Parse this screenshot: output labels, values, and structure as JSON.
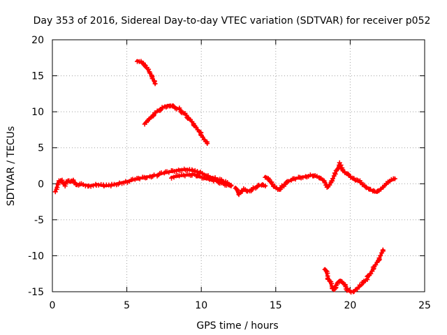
{
  "chart_data": {
    "type": "scatter",
    "title": "Day 353 of 2016, Sidereal Day-to-day VTEC variation (SDTVAR) for receiver p052",
    "xlabel": "GPS time / hours",
    "ylabel": "SDTVAR / TECUs",
    "xlim": [
      0,
      25
    ],
    "ylim": [
      -15,
      20
    ],
    "xticks": [
      0,
      5,
      10,
      15,
      20,
      25
    ],
    "yticks": [
      -15,
      -10,
      -5,
      0,
      5,
      10,
      15,
      20
    ],
    "grid": true,
    "marker": "plus",
    "color": "#ff0000",
    "series": [
      {
        "name": "track-1",
        "points": [
          [
            0.2,
            -1.0
          ],
          [
            0.3,
            -0.5
          ],
          [
            0.4,
            0.3
          ],
          [
            0.6,
            0.5
          ],
          [
            0.8,
            -0.2
          ],
          [
            1.0,
            0.4
          ],
          [
            1.2,
            0.2
          ],
          [
            1.4,
            0.5
          ],
          [
            1.6,
            0.0
          ],
          [
            1.8,
            -0.2
          ],
          [
            2.0,
            -0.1
          ],
          [
            2.5,
            -0.3
          ],
          [
            3.0,
            -0.1
          ],
          [
            3.5,
            -0.3
          ],
          [
            4.0,
            -0.2
          ],
          [
            4.5,
            0.1
          ],
          [
            5.0,
            0.3
          ],
          [
            5.5,
            0.6
          ],
          [
            6.0,
            0.8
          ],
          [
            6.5,
            1.0
          ],
          [
            7.0,
            1.2
          ],
          [
            7.5,
            1.5
          ],
          [
            8.0,
            1.7
          ],
          [
            8.5,
            1.9
          ],
          [
            9.0,
            2.0
          ],
          [
            9.5,
            1.8
          ],
          [
            10.0,
            1.5
          ],
          [
            10.5,
            1.0
          ],
          [
            11.0,
            0.7
          ],
          [
            11.5,
            0.3
          ],
          [
            12.0,
            -0.2
          ]
        ]
      },
      {
        "name": "track-2",
        "points": [
          [
            8.0,
            0.9
          ],
          [
            8.5,
            1.1
          ],
          [
            9.0,
            1.2
          ],
          [
            9.5,
            1.3
          ],
          [
            10.0,
            0.9
          ],
          [
            10.5,
            0.6
          ],
          [
            11.0,
            0.4
          ],
          [
            11.5,
            0.0
          ],
          [
            12.0,
            -0.3
          ]
        ]
      },
      {
        "name": "track-3",
        "points": [
          [
            12.3,
            -0.5
          ],
          [
            12.5,
            -1.5
          ],
          [
            12.8,
            -0.8
          ],
          [
            13.2,
            -1.0
          ],
          [
            13.6,
            -0.5
          ],
          [
            14.0,
            -0.2
          ],
          [
            14.3,
            -0.3
          ]
        ]
      },
      {
        "name": "track-4",
        "points": [
          [
            14.3,
            1.0
          ],
          [
            14.6,
            0.3
          ],
          [
            14.9,
            -0.5
          ],
          [
            15.2,
            -0.8
          ],
          [
            15.5,
            -0.2
          ],
          [
            16.0,
            0.5
          ],
          [
            16.5,
            0.8
          ],
          [
            17.0,
            1.0
          ],
          [
            17.5,
            1.2
          ],
          [
            18.0,
            0.8
          ],
          [
            18.3,
            0.3
          ],
          [
            18.5,
            -0.5
          ],
          [
            18.8,
            0.5
          ],
          [
            19.0,
            1.5
          ],
          [
            19.3,
            2.8
          ],
          [
            19.5,
            1.8
          ],
          [
            20.0,
            1.0
          ],
          [
            20.3,
            0.5
          ],
          [
            20.6,
            0.3
          ],
          [
            20.9,
            -0.2
          ],
          [
            21.2,
            -0.6
          ],
          [
            21.5,
            -1.0
          ],
          [
            21.8,
            -1.2
          ],
          [
            22.2,
            -0.5
          ],
          [
            22.6,
            0.3
          ],
          [
            23.0,
            0.7
          ]
        ]
      },
      {
        "name": "track-5",
        "points": [
          [
            18.3,
            -11.8
          ],
          [
            18.6,
            -13.5
          ],
          [
            18.9,
            -14.8
          ],
          [
            19.1,
            -13.8
          ],
          [
            19.3,
            -13.4
          ],
          [
            19.6,
            -14.0
          ],
          [
            19.9,
            -14.9
          ],
          [
            20.2,
            -15.0
          ],
          [
            20.5,
            -14.5
          ],
          [
            20.8,
            -14.0
          ],
          [
            21.2,
            -13.0
          ],
          [
            21.6,
            -11.6
          ],
          [
            22.0,
            -10.2
          ],
          [
            22.2,
            -9.2
          ]
        ]
      },
      {
        "name": "track-6",
        "points": [
          [
            5.7,
            17.1
          ],
          [
            6.0,
            16.8
          ],
          [
            6.2,
            16.3
          ],
          [
            6.4,
            15.9
          ],
          [
            6.6,
            15.2
          ],
          [
            6.8,
            14.3
          ],
          [
            6.9,
            13.9
          ]
        ]
      },
      {
        "name": "track-7",
        "points": [
          [
            6.2,
            8.4
          ],
          [
            6.5,
            9.0
          ],
          [
            7.0,
            10.0
          ],
          [
            7.5,
            10.7
          ],
          [
            7.8,
            10.9
          ],
          [
            8.0,
            10.8
          ],
          [
            8.5,
            10.4
          ],
          [
            9.0,
            9.5
          ],
          [
            9.5,
            8.3
          ],
          [
            10.0,
            6.8
          ],
          [
            10.4,
            5.6
          ]
        ]
      }
    ]
  }
}
